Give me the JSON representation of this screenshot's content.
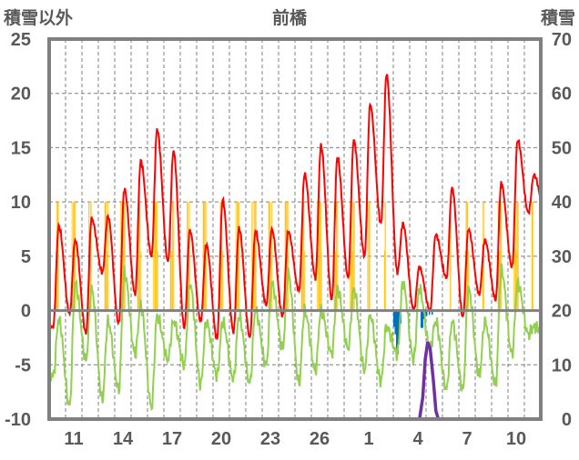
{
  "chart_data": {
    "type": "line",
    "title": "前橋",
    "ylabel_left": "積雪以外",
    "ylabel_right": "積雪",
    "ylim_left": [
      -10,
      25
    ],
    "ylim_right": [
      0,
      70
    ],
    "yticks_left": [
      "25",
      "20",
      "15",
      "10",
      "5",
      "0",
      "-5",
      "-10"
    ],
    "yticks_right": [
      "70",
      "60",
      "50",
      "40",
      "30",
      "20",
      "10",
      "0"
    ],
    "days": [
      10,
      11,
      12,
      13,
      14,
      15,
      16,
      17,
      18,
      19,
      20,
      21,
      22,
      23,
      24,
      25,
      26,
      27,
      28,
      1,
      2,
      3,
      4,
      5,
      6,
      7,
      8,
      9,
      10,
      11
    ],
    "xtick_labels": [
      {
        "day_index": 1,
        "label": "11"
      },
      {
        "day_index": 4,
        "label": "14"
      },
      {
        "day_index": 7,
        "label": "17"
      },
      {
        "day_index": 10,
        "label": "20"
      },
      {
        "day_index": 13,
        "label": "23"
      },
      {
        "day_index": 16,
        "label": "26"
      },
      {
        "day_index": 19,
        "label": "1"
      },
      {
        "day_index": 22,
        "label": "4"
      },
      {
        "day_index": 25,
        "label": "7"
      },
      {
        "day_index": 28,
        "label": "10"
      }
    ],
    "grid": true,
    "series": [
      {
        "name": "red-series",
        "axis": "left",
        "color": "#ff0000",
        "daily_max": [
          7.8,
          6.5,
          8.5,
          8.7,
          11.2,
          13.8,
          16.7,
          14.7,
          7.4,
          6.1,
          10.2,
          7.6,
          7.3,
          7.5,
          7.3,
          12.6,
          15.2,
          14.1,
          15.7,
          19.0,
          21.8,
          8.0,
          4.0,
          7.0,
          11.3,
          7.5,
          6.5,
          11.7,
          15.7,
          12.5
        ],
        "daily_min": [
          -1.5,
          -0.3,
          -2.1,
          3.5,
          -1.2,
          1.5,
          5.0,
          4.5,
          -1.6,
          -1.0,
          -2.6,
          -2.0,
          -2.5,
          0.5,
          -0.5,
          1.8,
          3.0,
          1.0,
          3.0,
          5.0,
          8.0,
          3.5,
          0.0,
          0.0,
          3.0,
          -0.6,
          1.5,
          1.0,
          4.0,
          9.0
        ]
      },
      {
        "name": "green-series",
        "axis": "left",
        "color": "#92d050",
        "daily_max": [
          -0.8,
          2.5,
          2.0,
          -1.0,
          3.5,
          0.5,
          -0.5,
          -1.0,
          2.5,
          -1.0,
          -1.0,
          -0.5,
          0.0,
          2.5,
          3.5,
          0.0,
          0.0,
          2.0,
          2.0,
          -0.5,
          -1.5,
          2.5,
          2.0,
          -1.0,
          -1.0,
          2.0,
          -1.0,
          3.8,
          2.5,
          -1.5
        ],
        "daily_min": [
          -6.0,
          -8.8,
          -4.5,
          -8.2,
          -7.3,
          -4.0,
          -8.9,
          -4.5,
          -5.0,
          -6.8,
          -6.0,
          -6.3,
          -6.7,
          -5.0,
          -3.5,
          -6.7,
          -5.5,
          -4.0,
          -3.5,
          -5.5,
          -6.5,
          -4.0,
          -4.5,
          -3.5,
          -7.3,
          -7.3,
          -6.0,
          -6.8,
          -4.0,
          -2.2
        ]
      },
      {
        "name": "yellow-bars",
        "axis": "left",
        "color": "#ffc000",
        "daily_hours": [
          5,
          6,
          5,
          6,
          7,
          6,
          7,
          6,
          5,
          6,
          6,
          6,
          7,
          6,
          6,
          6,
          7,
          6,
          7,
          4,
          3,
          0,
          0,
          0,
          2,
          6,
          3,
          6,
          7,
          3
        ],
        "bar_value": 10
      },
      {
        "name": "blue-bars",
        "axis": "left",
        "color": "#0070c0",
        "hourly": [
          {
            "day_index": 21,
            "hour": 0,
            "value": -1.5
          },
          {
            "day_index": 21,
            "hour": 2,
            "value": -2.2
          },
          {
            "day_index": 21,
            "hour": 4,
            "value": -3.8
          },
          {
            "day_index": 21,
            "hour": 6,
            "value": -4.0
          },
          {
            "day_index": 21,
            "hour": 8,
            "value": -2.5
          },
          {
            "day_index": 21,
            "hour": 10,
            "value": -1.2
          },
          {
            "day_index": 22,
            "hour": 16,
            "value": -1.6
          },
          {
            "day_index": 22,
            "hour": 18,
            "value": -1.6
          },
          {
            "day_index": 22,
            "hour": 20,
            "value": -0.8
          },
          {
            "day_index": 22,
            "hour": 22,
            "value": -0.5
          },
          {
            "day_index": 23,
            "hour": 0,
            "value": -0.5
          },
          {
            "day_index": 23,
            "hour": 4,
            "value": -0.4
          },
          {
            "day_index": 23,
            "hour": 8,
            "value": -0.4
          }
        ]
      },
      {
        "name": "purple-series",
        "axis": "right",
        "color": "#7030a0",
        "points": [
          {
            "t": 0,
            "v": 0
          },
          {
            "t": 22.6,
            "v": 0
          },
          {
            "t": 22.8,
            "v": 4
          },
          {
            "t": 22.95,
            "v": 11
          },
          {
            "t": 23.1,
            "v": 14.2
          },
          {
            "t": 23.25,
            "v": 13
          },
          {
            "t": 23.45,
            "v": 7
          },
          {
            "t": 23.6,
            "v": 1.5
          },
          {
            "t": 23.75,
            "v": 0
          },
          {
            "t": 30,
            "v": 0
          }
        ]
      }
    ]
  }
}
